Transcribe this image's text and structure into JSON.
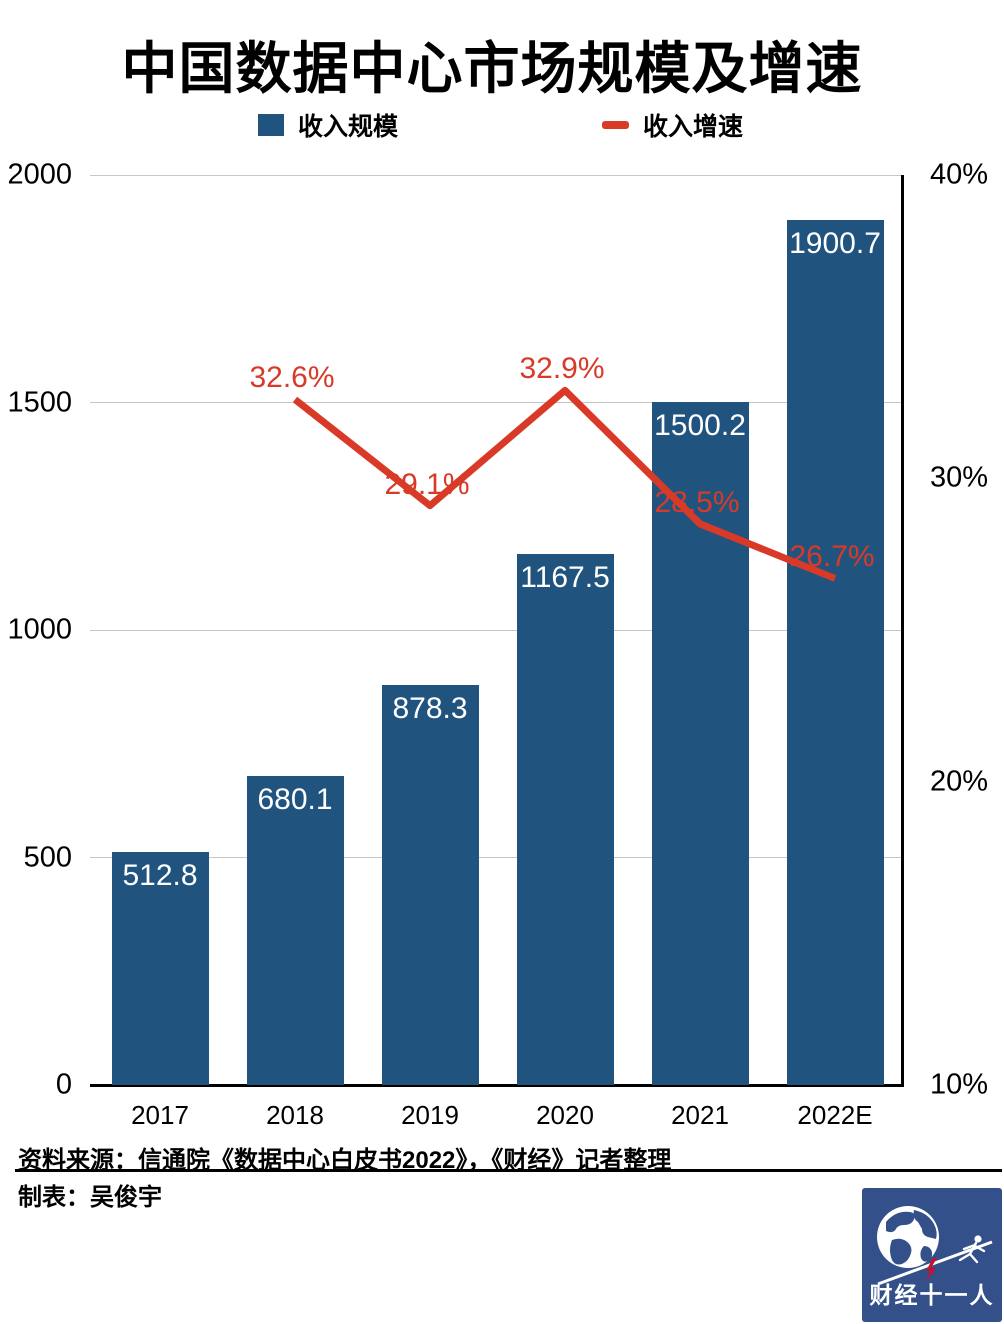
{
  "header": {
    "title": "中国数据中心市场规模及增速"
  },
  "legend": {
    "items": [
      {
        "label": "收入规模",
        "marker": "bar-swatch-icon",
        "color": "#20547F"
      },
      {
        "label": "收入增速",
        "marker": "line-dash-icon",
        "color": "#D93A28"
      }
    ]
  },
  "chart_data": {
    "type": "combo-bar-line",
    "title": "中国数据中心市场规模及增速",
    "categories": [
      "2017",
      "2018",
      "2019",
      "2020",
      "2021",
      "2022E"
    ],
    "series": [
      {
        "name": "收入规模",
        "type": "bar",
        "axis": "left",
        "color": "#20547F",
        "values": [
          512.8,
          680.1,
          878.3,
          1167.5,
          1500.2,
          1900.7
        ],
        "labels": [
          "512.8",
          "680.1",
          "878.3",
          "1167.5",
          "1500.2",
          "1900.7"
        ],
        "label_color": "#FFFFFF"
      },
      {
        "name": "收入增速",
        "type": "line",
        "axis": "right",
        "color": "#D93A28",
        "values": [
          null,
          32.6,
          29.1,
          32.9,
          28.5,
          26.7
        ],
        "labels": [
          null,
          "32.6%",
          "29.1%",
          "32.9%",
          "28.5%",
          "26.7%"
        ]
      }
    ],
    "left_axis": {
      "range": [
        0,
        2000
      ],
      "ticks": [
        {
          "v": 2000,
          "label": "2000"
        },
        {
          "v": 1500,
          "label": "1500"
        },
        {
          "v": 1000,
          "label": "1000"
        },
        {
          "v": 500,
          "label": "500"
        },
        {
          "v": 0,
          "label": "0"
        }
      ]
    },
    "right_axis": {
      "range": [
        10,
        40
      ],
      "ticks": [
        {
          "v": 40,
          "label": "40%"
        },
        {
          "v": 30,
          "label": "30%"
        },
        {
          "v": 20,
          "label": "20%"
        },
        {
          "v": 10,
          "label": "10%"
        }
      ]
    },
    "grid": true,
    "legend_position": "top"
  },
  "footer": {
    "source": "资料来源：信通院《数据中心白皮书2022》，《财经》记者整理",
    "credit": "制表：吴俊宇"
  },
  "logo": {
    "text": "财经十一人",
    "background": "#33508A",
    "accent": "#C8102E"
  }
}
